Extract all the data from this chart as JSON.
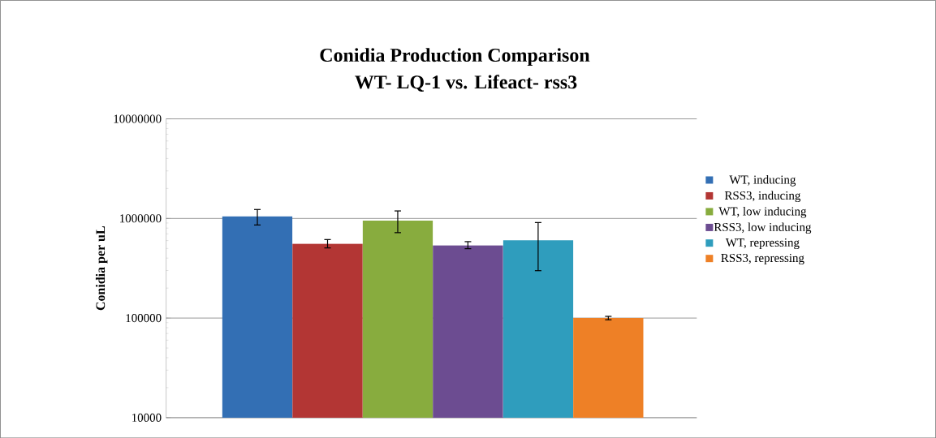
{
  "chart_data": {
    "type": "bar",
    "title": "Conidia Production Comparison",
    "subtitle": "WT- LQ-1 vs. Lifeact- rss3",
    "ylabel": "Conidia per uL",
    "categories": [
      null
    ],
    "series": [
      {
        "name": "WT, inducing",
        "color": "#336fb4",
        "values": [
          1050000
        ],
        "errors": [
          [
            860000,
            1230000
          ]
        ]
      },
      {
        "name": "RSS3, inducing",
        "color": "#b33634",
        "values": [
          558000
        ],
        "errors": [
          [
            506000,
            614000
          ]
        ]
      },
      {
        "name": "WT, low inducing",
        "color": "#88ac3e",
        "values": [
          950000
        ],
        "errors": [
          [
            720000,
            1190000
          ]
        ]
      },
      {
        "name": "RSS3, low inducing",
        "color": "#6c4c91",
        "values": [
          537000
        ],
        "errors": [
          [
            497000,
            585000
          ]
        ]
      },
      {
        "name": "WT, repressing",
        "color": "#2f9dbd",
        "values": [
          603000
        ],
        "errors": [
          [
            299000,
            910000
          ]
        ]
      },
      {
        "name": "RSS3, repressing",
        "color": "#ee8026",
        "values": [
          100000
        ],
        "errors": [
          [
            96000,
            104000
          ]
        ]
      }
    ],
    "log": "y",
    "ylim": [
      10000,
      10000000
    ],
    "yticks": [
      10000,
      100000,
      1000000,
      10000000
    ],
    "grid": "y",
    "legend": "right"
  }
}
